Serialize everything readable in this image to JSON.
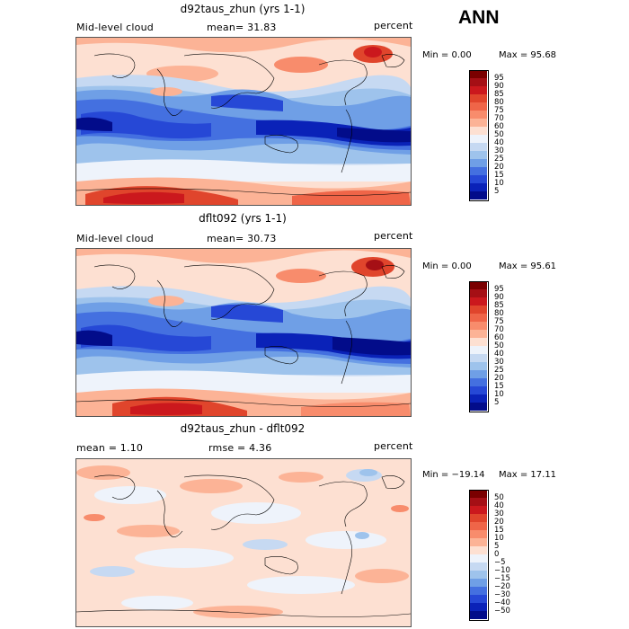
{
  "season_label": "ANN",
  "panels": [
    {
      "title": "d92taus_zhun (yrs 1-1)",
      "left_label": "Mid-level cloud",
      "mean_text": "mean=   31.83",
      "units": "percent",
      "min_text": "Min =    0.00",
      "max_text": "Max =   95.68",
      "colorbar_labels": [
        "95",
        "90",
        "85",
        "80",
        "75",
        "70",
        "60",
        "50",
        "40",
        "30",
        "25",
        "20",
        "15",
        "10",
        "5"
      ],
      "colors": [
        "#7a0000",
        "#a50f15",
        "#cb181d",
        "#e0452c",
        "#ef6548",
        "#f88c6c",
        "#fcb396",
        "#fde0d2",
        "#eef3fb",
        "#c6d9f2",
        "#9ec3ec",
        "#6f9fe6",
        "#4470e0",
        "#2648d6",
        "#0a22b8",
        "#020c8a"
      ]
    },
    {
      "title": "dflt092 (yrs 1-1)",
      "left_label": "Mid-level cloud",
      "mean_text": "mean=   30.73",
      "units": "percent",
      "min_text": "Min =    0.00",
      "max_text": "Max =   95.61",
      "colorbar_labels": [
        "95",
        "90",
        "85",
        "80",
        "75",
        "70",
        "60",
        "50",
        "40",
        "30",
        "25",
        "20",
        "15",
        "10",
        "5"
      ],
      "colors": [
        "#7a0000",
        "#a50f15",
        "#cb181d",
        "#e0452c",
        "#ef6548",
        "#f88c6c",
        "#fcb396",
        "#fde0d2",
        "#eef3fb",
        "#c6d9f2",
        "#9ec3ec",
        "#6f9fe6",
        "#4470e0",
        "#2648d6",
        "#0a22b8",
        "#020c8a"
      ]
    },
    {
      "title": "d92taus_zhun - dflt092",
      "left_label": "mean =    1.10",
      "mean_text": "rmse =    4.36",
      "units": "percent",
      "min_text": "Min = −19.14",
      "max_text": "Max =   17.11",
      "colorbar_labels": [
        "50",
        "40",
        "30",
        "20",
        "15",
        "10",
        "5",
        "0",
        "−5",
        "−10",
        "−15",
        "−20",
        "−30",
        "−40",
        "−50"
      ],
      "colors": [
        "#7a0000",
        "#a50f15",
        "#cb181d",
        "#e0452c",
        "#ef6548",
        "#f88c6c",
        "#fcb396",
        "#fde0d2",
        "#eef3fb",
        "#c6d9f2",
        "#9ec3ec",
        "#6f9fe6",
        "#4470e0",
        "#2648d6",
        "#0a22b8",
        "#020c8a"
      ]
    }
  ]
}
